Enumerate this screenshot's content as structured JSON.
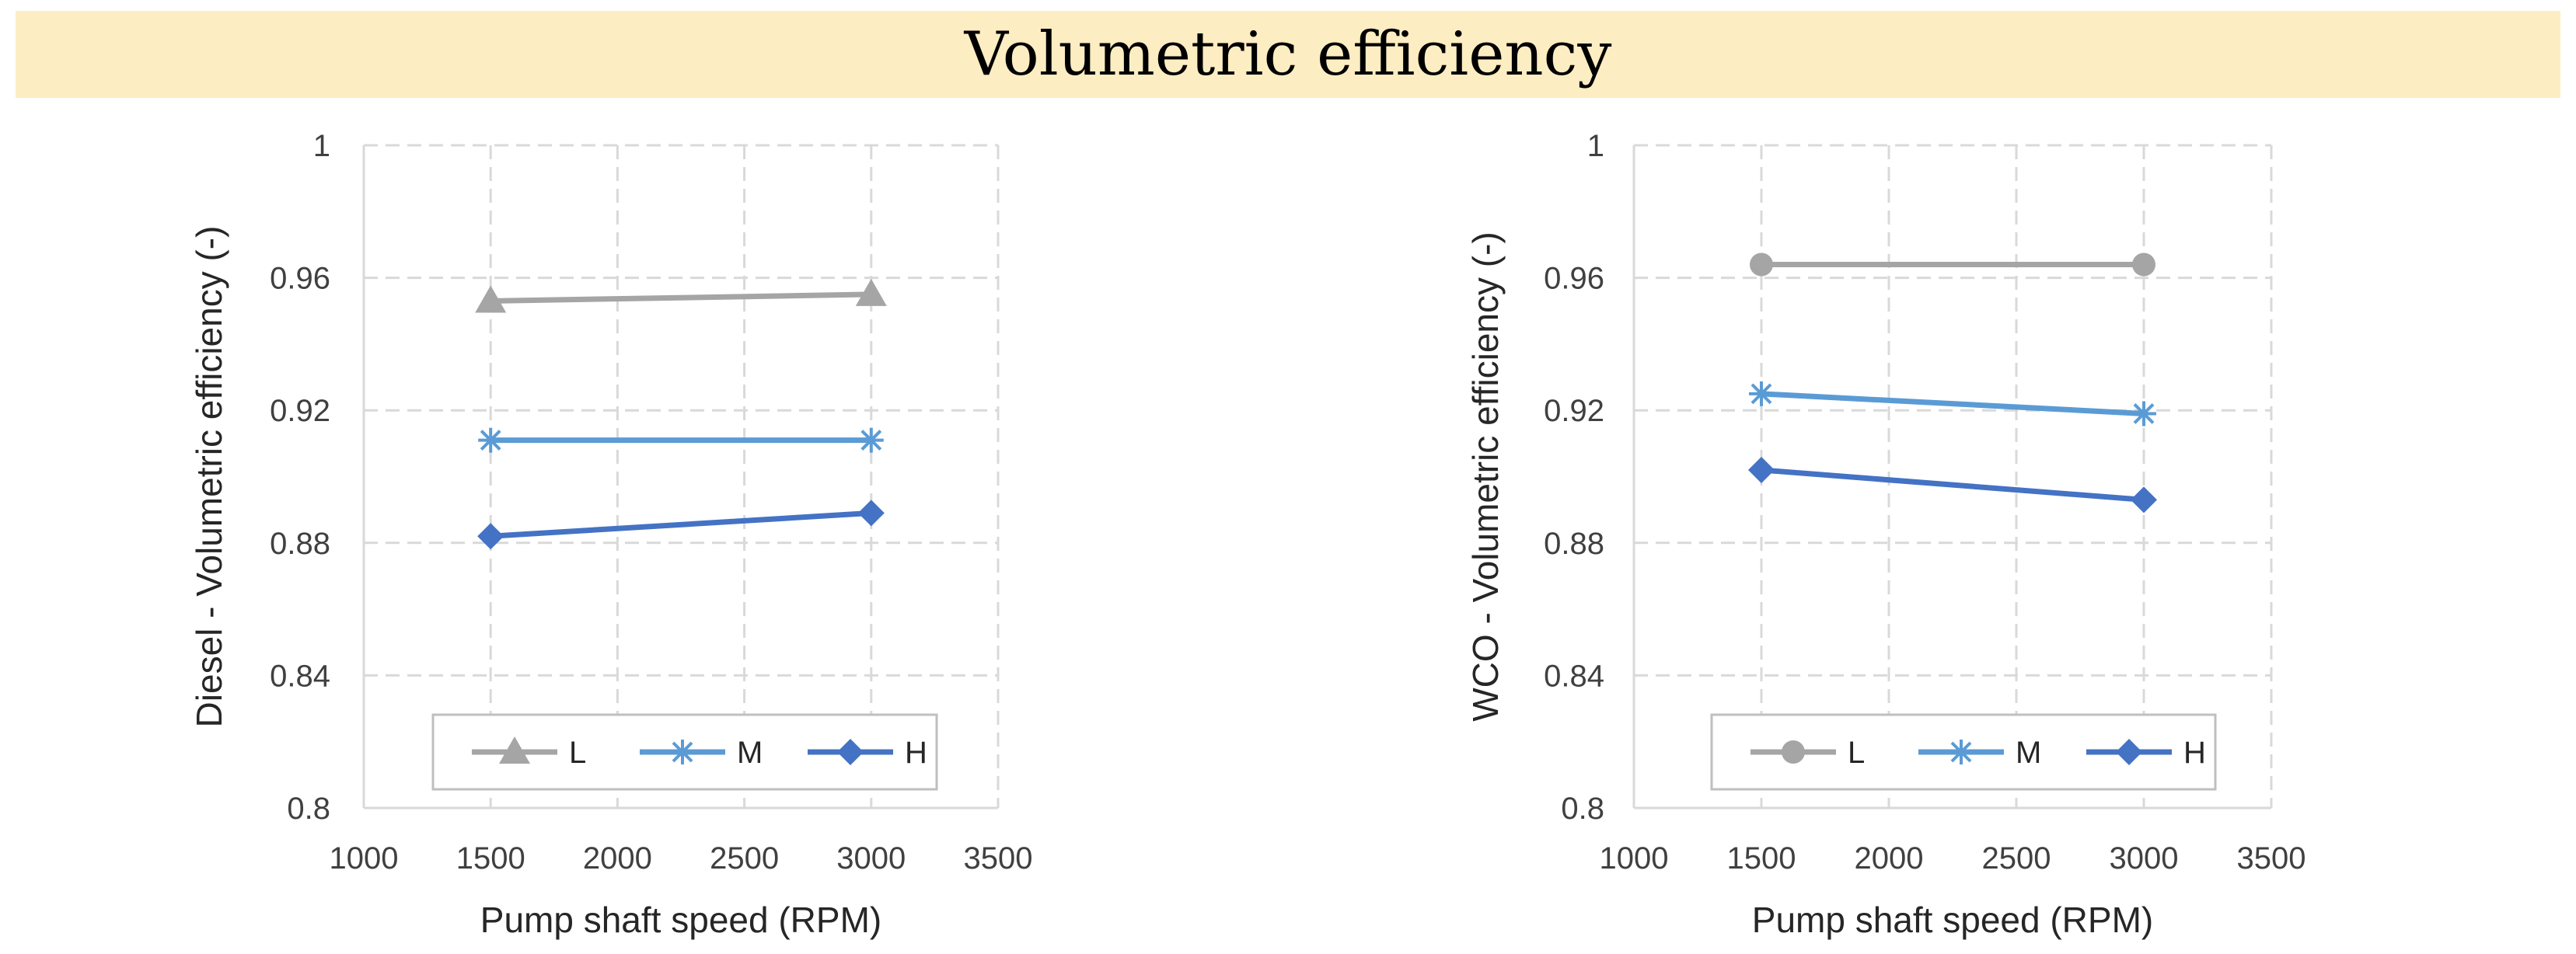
{
  "page_title": "Volumetric efficiency",
  "chart_data": [
    {
      "type": "line",
      "title": "",
      "xlabel": "Pump shaft speed (RPM)",
      "ylabel": "Diesel - Volumetric efficiency (-)",
      "xlim": [
        1000,
        3500
      ],
      "ylim": [
        0.8,
        1
      ],
      "xticks": [
        1000,
        1500,
        2000,
        2500,
        3000,
        3500
      ],
      "yticks": [
        0.8,
        0.84,
        0.88,
        0.92,
        0.96,
        1
      ],
      "xtick_labels": [
        "1000",
        "1500",
        "2000",
        "2500",
        "3000",
        "3500"
      ],
      "ytick_labels": [
        "0.8",
        "0.84",
        "0.88",
        "0.92",
        "0.96",
        "1"
      ],
      "grid": true,
      "legend_position": "bottom",
      "x": [
        1500,
        3000
      ],
      "series": [
        {
          "name": "L",
          "values": [
            0.953,
            0.955
          ],
          "color": "#a5a5a5",
          "marker": "triangle"
        },
        {
          "name": "M",
          "values": [
            0.911,
            0.911
          ],
          "color": "#5b9bd5",
          "marker": "star"
        },
        {
          "name": "H",
          "values": [
            0.882,
            0.889
          ],
          "color": "#4472c4",
          "marker": "diamond"
        }
      ]
    },
    {
      "type": "line",
      "title": "",
      "xlabel": "Pump shaft speed (RPM)",
      "ylabel": "WCO - Volumetric efficiency (-)",
      "xlim": [
        1000,
        3500
      ],
      "ylim": [
        0.8,
        1
      ],
      "xticks": [
        1000,
        1500,
        2000,
        2500,
        3000,
        3500
      ],
      "yticks": [
        0.8,
        0.84,
        0.88,
        0.92,
        0.96,
        1
      ],
      "xtick_labels": [
        "1000",
        "1500",
        "2000",
        "2500",
        "3000",
        "3500"
      ],
      "ytick_labels": [
        "0.8",
        "0.84",
        "0.88",
        "0.92",
        "0.96",
        "1"
      ],
      "grid": true,
      "legend_position": "bottom",
      "x": [
        1500,
        3000
      ],
      "series": [
        {
          "name": "L",
          "values": [
            0.964,
            0.964
          ],
          "color": "#a5a5a5",
          "marker": "circle"
        },
        {
          "name": "M",
          "values": [
            0.925,
            0.919
          ],
          "color": "#5b9bd5",
          "marker": "star"
        },
        {
          "name": "H",
          "values": [
            0.902,
            0.893
          ],
          "color": "#4472c4",
          "marker": "diamond"
        }
      ]
    }
  ]
}
